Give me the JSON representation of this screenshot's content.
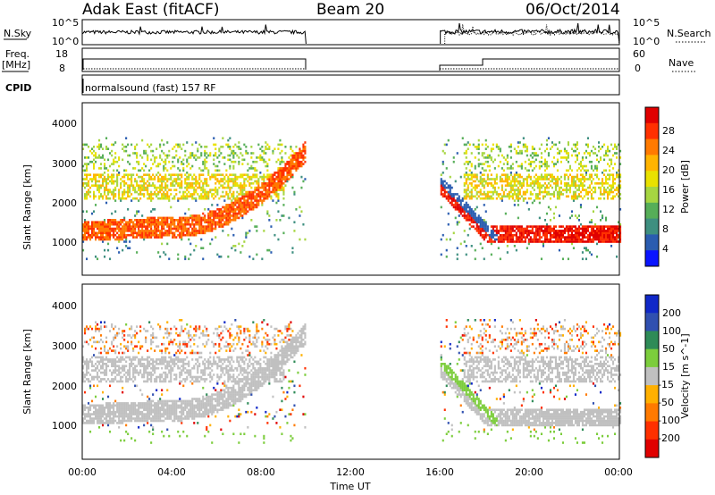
{
  "header": {
    "station": "Adak East (fitACF)",
    "beam": "Beam 20",
    "date": "06/Oct/2014"
  },
  "params": {
    "nsky_label": "N.Sky",
    "nsearch_label": "N.Search",
    "nsky_ticks": [
      "10^5",
      "10^0"
    ],
    "nsearch_ticks": [
      "10^5",
      "10^0"
    ],
    "freq_label": [
      "Freq.",
      "[MHz]"
    ],
    "freq_ticks": [
      "18",
      "8"
    ],
    "nave_label": "Nave",
    "nave_ticks": [
      "60",
      "0"
    ],
    "cpid_label": "CPID",
    "cpid_text": "normalsound (fast) 157 RF"
  },
  "chart_data": [
    {
      "type": "heatmap",
      "name": "power",
      "ylabel": "Slant Range [km]",
      "xlabel": "",
      "x_range_hours": [
        0,
        24
      ],
      "ylim": [
        200,
        4600
      ],
      "yticks": [
        "1000",
        "2000",
        "3000",
        "4000"
      ],
      "data_gaps_hours": [
        [
          10,
          16
        ]
      ],
      "colorbar": {
        "label": "Power [dB]",
        "ticks": [
          "28",
          "24",
          "20",
          "16",
          "12",
          "8",
          "4"
        ],
        "colors": [
          "#e00000",
          "#ff3000",
          "#ff7a00",
          "#ffb400",
          "#e9e100",
          "#a6d641",
          "#56ae58",
          "#3e8f80",
          "#2a5cb0",
          "#0a14ff"
        ]
      }
    },
    {
      "type": "heatmap",
      "name": "velocity",
      "ylabel": "Slant Range [km]",
      "xlabel": "Time UT",
      "x_range_hours": [
        0,
        24
      ],
      "ylim": [
        200,
        4600
      ],
      "yticks": [
        "1000",
        "2000",
        "3000",
        "4000"
      ],
      "xticks": [
        "00:00",
        "04:00",
        "08:00",
        "12:00",
        "16:00",
        "20:00",
        "00:00"
      ],
      "data_gaps_hours": [
        [
          10,
          16
        ]
      ],
      "colorbar": {
        "label": "Velocity [m s^-1]",
        "ticks": [
          "200",
          "100",
          "50",
          "15",
          "-15",
          "-50",
          "-100",
          "-200"
        ],
        "colors": [
          "#1028c8",
          "#3050b0",
          "#2e8b57",
          "#7ccd3c",
          "#c0c0c0",
          "#ffb000",
          "#ff7a00",
          "#ff3000",
          "#e00000"
        ]
      }
    }
  ]
}
